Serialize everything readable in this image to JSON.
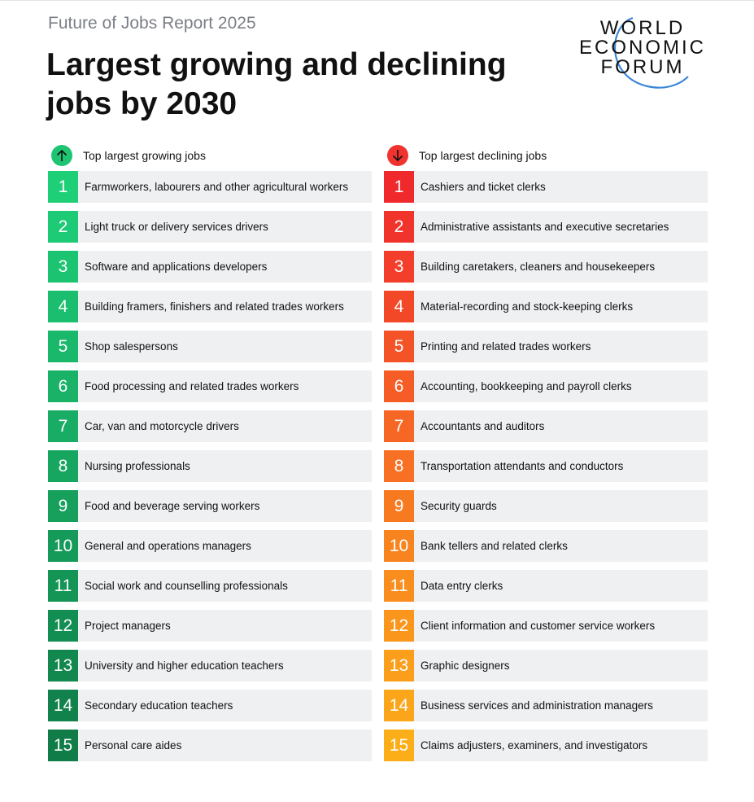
{
  "report_label": "Future of Jobs Report 2025",
  "title": "Largest growing and declining jobs by 2030",
  "logo": {
    "line1": "WORLD",
    "line2": "ECONOMIC",
    "line3": "FORUM"
  },
  "growing": {
    "header": "Top largest growing jobs",
    "icon": "arrow-up-icon",
    "icon_color": "#1fc472",
    "items": [
      {
        "rank": "1",
        "label": "Farmworkers, labourers and other agricultural workers",
        "color": "#1ecf78"
      },
      {
        "rank": "2",
        "label": "Light truck or delivery services drivers",
        "color": "#1dca75"
      },
      {
        "rank": "3",
        "label": "Software and applications developers",
        "color": "#1cc472"
      },
      {
        "rank": "4",
        "label": "Building framers, finishers and related trades workers",
        "color": "#1bbe6e"
      },
      {
        "rank": "5",
        "label": "Shop salespersons",
        "color": "#1ab86b"
      },
      {
        "rank": "6",
        "label": "Food processing and related trades workers",
        "color": "#19b267"
      },
      {
        "rank": "7",
        "label": "Car, van and motorcycle drivers",
        "color": "#18ac64"
      },
      {
        "rank": "8",
        "label": "Nursing professionals",
        "color": "#17a660"
      },
      {
        "rank": "9",
        "label": "Food and beverage serving workers",
        "color": "#16a05c"
      },
      {
        "rank": "10",
        "label": "General and operations managers",
        "color": "#159a59"
      },
      {
        "rank": "11",
        "label": "Social work and counselling professionals",
        "color": "#149455"
      },
      {
        "rank": "12",
        "label": "Project managers",
        "color": "#138e52"
      },
      {
        "rank": "13",
        "label": "University and higher education teachers",
        "color": "#12884e"
      },
      {
        "rank": "14",
        "label": "Secondary education teachers",
        "color": "#11824b"
      },
      {
        "rank": "15",
        "label": "Personal care aides",
        "color": "#107c47"
      }
    ]
  },
  "declining": {
    "header": "Top largest declining jobs",
    "icon": "arrow-down-icon",
    "icon_color": "#f0332f",
    "items": [
      {
        "rank": "1",
        "label": "Cashiers and ticket clerks",
        "color": "#f02a2c"
      },
      {
        "rank": "2",
        "label": "Administrative assistants and executive secretaries",
        "color": "#f1342b"
      },
      {
        "rank": "3",
        "label": "Building caretakers, cleaners and housekeepers",
        "color": "#f23e2a"
      },
      {
        "rank": "4",
        "label": "Material-recording and stock-keeping clerks",
        "color": "#f34828"
      },
      {
        "rank": "5",
        "label": "Printing and related trades workers",
        "color": "#f45227"
      },
      {
        "rank": "6",
        "label": "Accounting, bookkeeping and payroll clerks",
        "color": "#f55c26"
      },
      {
        "rank": "7",
        "label": "Accountants and auditors",
        "color": "#f66624"
      },
      {
        "rank": "8",
        "label": "Transportation attendants and conductors",
        "color": "#f77023"
      },
      {
        "rank": "9",
        "label": "Security guards",
        "color": "#f77a21"
      },
      {
        "rank": "10",
        "label": "Bank tellers and related clerks",
        "color": "#f88420"
      },
      {
        "rank": "11",
        "label": "Data entry clerks",
        "color": "#f98d1e"
      },
      {
        "rank": "12",
        "label": "Client information and customer service workers",
        "color": "#fa961c"
      },
      {
        "rank": "13",
        "label": "Graphic designers",
        "color": "#fb9e1b"
      },
      {
        "rank": "14",
        "label": "Business services and administration managers",
        "color": "#fba61a"
      },
      {
        "rank": "15",
        "label": "Claims adjusters, examiners, and investigators",
        "color": "#fcae19"
      }
    ]
  }
}
